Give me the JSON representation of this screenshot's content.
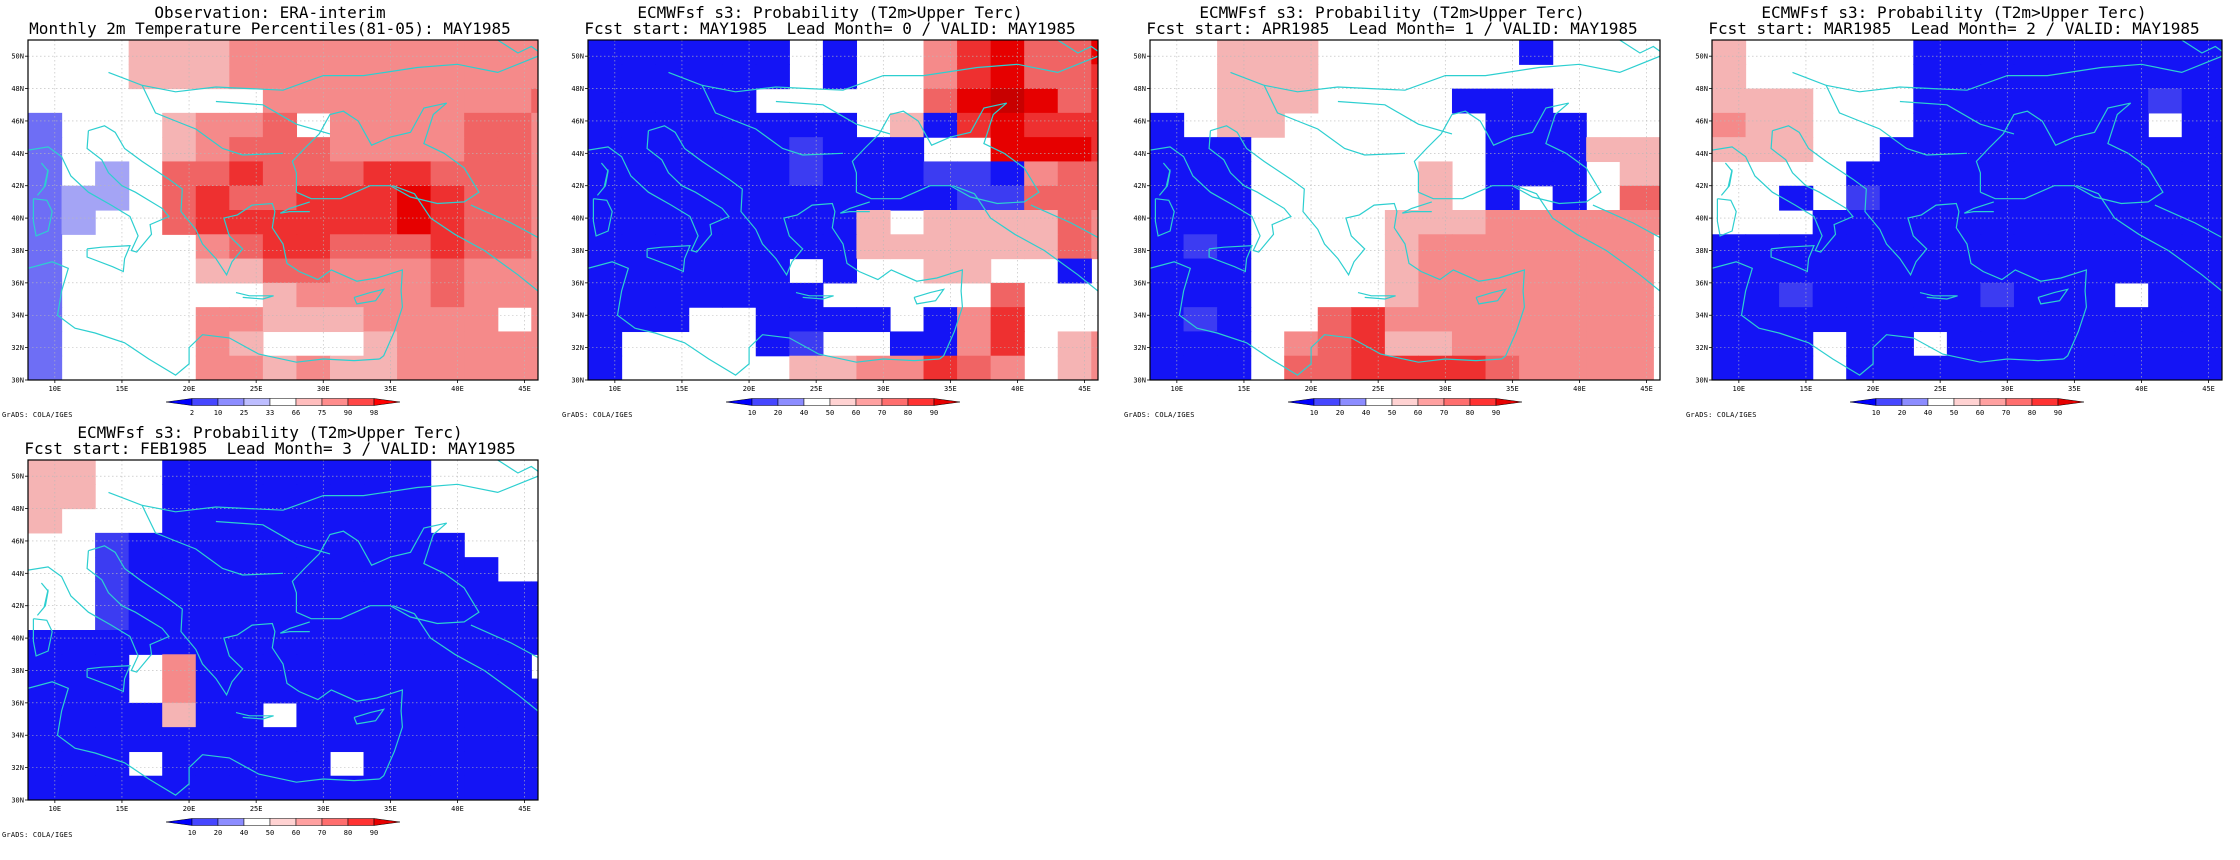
{
  "credit": "GrADS: COLA/IGES",
  "lon_labels": [
    "10E",
    "15E",
    "20E",
    "25E",
    "30E",
    "35E",
    "40E",
    "45E"
  ],
  "lat_labels": [
    "30N",
    "32N",
    "34N",
    "36N",
    "38N",
    "40N",
    "42N",
    "44N",
    "46N",
    "48N",
    "50N"
  ],
  "grid_extent": {
    "lon": [
      8,
      46
    ],
    "lat": [
      30,
      51
    ],
    "cell_deg": 2.5
  },
  "colors": {
    "coast": "#2dcfd0",
    "grid_line": "#b8b8b8",
    "frame": "#000000",
    "cat": {
      "b3": "#1414f5",
      "b2": "#3c3cf2",
      "b1": "#6e6ef5",
      "b0": "#a4a4f5",
      "w": "#ffffff",
      "r0": "#f5b4b4",
      "r1": "#f58a8a",
      "r2": "#f06464",
      "r3": "#ee3030",
      "r4": "#e60000",
      "r5": "#c80000"
    }
  },
  "legends": {
    "percentile": {
      "labels": [
        "2",
        "10",
        "25",
        "33",
        "66",
        "75",
        "90",
        "98"
      ],
      "colors": [
        "#0000ff",
        "#4646ff",
        "#8c8cff",
        "#bdbdff",
        "#ffffff",
        "#ffbdbd",
        "#ff8c8c",
        "#ff4646",
        "#ff0000"
      ]
    },
    "probability": {
      "labels": [
        "10",
        "20",
        "40",
        "50",
        "60",
        "70",
        "80",
        "90"
      ],
      "colors": [
        "#0000ff",
        "#4646ff",
        "#8c8cff",
        "#ffffff",
        "#ffd2d2",
        "#ffa0a0",
        "#ff6e6e",
        "#ff3232",
        "#e60000"
      ]
    }
  },
  "panels": [
    {
      "title1": "Observation: ERA-interim",
      "title2": "Monthly 2m Temperature Percentiles(81-05): MAY1985",
      "legend": "percentile",
      "cells": [
        "wwwwwwr0r0r0r1r1r1r1r1r1r1r1r1r1",
        "wwwwwwr0r0r0r1r1r1r1r1r1r1r1r1r1",
        "wwwwwwwwwwwwwwr1r1r1r1r1r1r1r1r2",
        "b1wwwwwwr0r1r1r2wwr1r1r1r1r2r2r1",
        "b1wwwwwwr0r1r2r2r2r1r1r1r1r2r2r1",
        "b1wwb0wwr2r2r3r2r2r2r3r3r2r2r2r1",
        "b1b0b0wwr2r3r2r2r3r3r3r4r3r2r2r1",
        "b1b0wwwwr2r3r3r3r3r3r3r4r3r2r2r1",
        "b1wwwwwwwwr1r2r3r3r2r2r2r3r2r2r1",
        "b1wwwwwwwwr0r0r2r2r1r1r1r2r1r1r1",
        "b1wwwwwwwwwwwwr0r1r1r1r1r2r1r1r1",
        "b1wwwwwwwwr1r1r0r0r0r1r1r1r1wwr1",
        "b1wwwwwwwwr1r0wwwwwwr0r1r1r1r1r1",
        "b1wwwwwwwwr1r1r0r1r0r0r1r1r1r1r1"
      ]
    },
    {
      "title1": "ECMWFsf s3: Probability (T2m>Upper Terc)",
      "title2": "Fcst start: MAY1985  Lead Month= 0 / VALID: MAY1985",
      "legend": "probability",
      "cells": [
        "b3b3b3b3b3b3wwb3wwwwr1r3r4r2r2r4",
        "b3b3b3b3b3b3wwb3wwwwr1r3r4r2r2r3",
        "b3b3b3b3b3wwwwwwwwwwr2r4r5r4r2r3",
        "b3b3b3b3b3b3b3b3wwr0b3r3r4r3r3r3",
        "b3b3b3b3b3b3b2b3b3b3wwwwr4r4r4r3",
        "b3b3b3b3b3b3b2b3b3b3b2b2b3r1r2r2",
        "b3b3b3b3b3b3b3b3b3b3b3b2b2r2r2r2",
        "b3b3b3b3b3b3b3b3r0wwr0r0r0r0r2r1",
        "b3b3b3b3b3b3b3b3r0r0r0r0r0r0r2r1",
        "b3b3b3b3b3b3wwb3wwwwr0r0wwwwb3ww",
        "b3b3b3b3b3b3b3wwwwwwwwwwr2wwwwww",
        "b3b3b3wwwwb3b3b3b3wwb3r1r3wwwwww",
        "b3wwwwwwwwb3b2wwwwb3b3r1r3wwr0r1",
        "b3wwwwwwwwwwr0r0r1r1r3r2r1wwr0r1"
      ]
    },
    {
      "title1": "ECMWFsf s3: Probability (T2m>Upper Terc)",
      "title2": "Fcst start: APR1985  Lead Month= 1 / VALID: MAY1985",
      "legend": "probability",
      "cells": [
        "wwwwr0r0r0wwwwwwwwwwwwb3wwwwwwww",
        "wwwwr0r0r0wwwwwwwwwwwwwwwwwwwwww",
        "wwwwr0r0r0wwwwwwwwb3b3b3wwwwwwww",
        "b3wwr0r0wwwwwwwwwwwwb3b3b3wwwwww",
        "b3b3b3wwwwwwwwwwwwwwb3b3b3r0r0r0",
        "b3b3b3wwwwwwwwwwr0wwb3b3b3wwr0r0",
        "b3b3b3wwwwwwwwwwr0wwb3wwb3wwr2r2",
        "b3b3b3wwwwwwwwr0r0r0r1r1r1r1r1r1",
        "b3b2b3wwwwwwwwr0r1r1r1r1r1r1r1ww",
        "b3b3b3wwwwwwwwr0r1r1r1r1r1r1r1ww",
        "b3b3b3wwwwwwwwr0r1r1r1r1r1r1r1ww",
        "b3b2b3wwwwr2r3r1r1r1r1r1r1r1r1ww",
        "b3b3b3wwr1r2r3r0r0r1r1r1r1r1r1ww",
        "b3b3b3wwr2r2r3r3r3r3r2r1r1r1r1ww"
      ]
    },
    {
      "title1": "ECMWFsf s3: Probability (T2m>Upper Terc)",
      "title2": "Fcst start: MAR1985  Lead Month= 2 / VALID: MAY1985",
      "legend": "probability",
      "cells": [
        "r0wwwwwwwwwwb3b3b3b3b3b3b3b3b3b3",
        "r0wwwwwwwwwwb3b3b3b3b3b3b3b3b3b3",
        "r0r0r0wwwwwwb3b3b3b3b3b3b3b2b3b3",
        "r1r0r0wwwwwwb3b3b3b3b3b3b3wwb3b3",
        "r0r0r0wwwwb3b3b3b3b3b3b3b3b3b3b3",
        "wwwwwwwwb3b3b3b3b3b3b3b3b3b3b3b3",
        "wwwwb3wwb2b3b3b3b3b3b3b3b3b3b3b3",
        "wwwwwwb3b3b3b3b3b3b3b3b3b3b3b3b3",
        "b3b3b3b3b3b3b3b3b3b3b3b3b3b3b3b3",
        "b3b3b3b3b3b3b3b3b3b3b3b3b3b3b3b3",
        "b3b3b2b3b3b3b3b3b2b3b3b3wwb3b3b3",
        "b3b3b3b3b3b3b3b3b3b3b3b3b3b3b3b3",
        "b3b3b3wwb3b3wwb3b3b3b3b3b3b3b3b3",
        "b3b3b3wwb3b3b3b3b3b3b3b3b3b3b3b3"
      ]
    },
    {
      "title1": "ECMWFsf s3: Probability (T2m>Upper Terc)",
      "title2": "Fcst start: FEB1985  Lead Month= 3 / VALID: MAY1985",
      "legend": "probability",
      "cells": [
        "r0r0wwwwb3b3b3b3b3b3b3b3wwwwwwww",
        "r0r0wwwwb3b3b3b3b3b3b3b3wwwwwwww",
        "r0wwwwwwb3b3b3b3b3b3b3b3wwwwwwww",
        "wwwwb2b3b3b3b3b3b3b3b3b3b3wwwwww",
        "wwwwb2b3b3b3b3b3b3b3b3b3b3b3wwww",
        "wwwwb2b3b3b3b3b3b3b3b3b3b3b3b3b3",
        "wwwwb2b3b3b3b3b3b3b3b3b3b3b3b3b3",
        "b3b3b3b3b3b3b3b3b3b3b3b3b3b3b3b3",
        "b3b3b3wwr1b3b3b3b3b3b3b3b3b3b3ww",
        "b3b3b3wwr1b3b3b3b3b3b3b3b3b3b3b3",
        "b3b3b3b3r0b3b3wwb3b3b3b3b3b3b3b3",
        "b3b3b3b3b3b3b3b3b3b3b3b3b3b3b3b3",
        "b3b3b3wwb3b3b3b3b3wwb3b3b3b3b3b3",
        "b3b3b3b3b3b3b3b3b3b3b3b3b3b3b3b3"
      ]
    }
  ]
}
